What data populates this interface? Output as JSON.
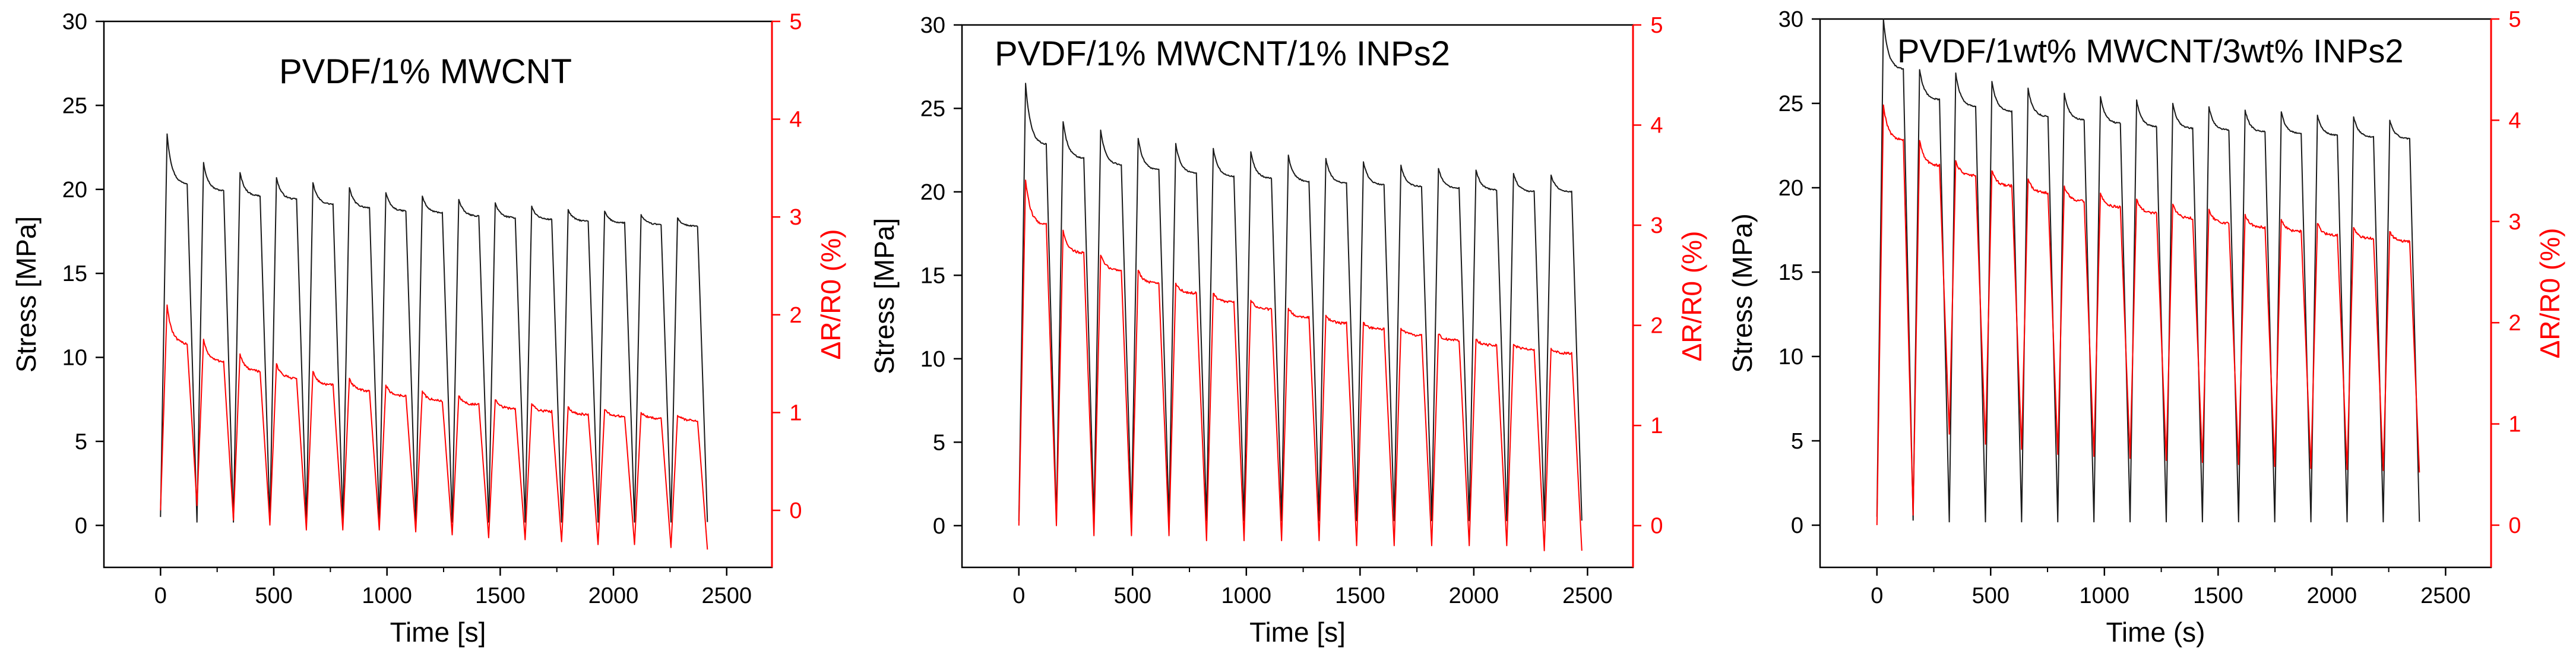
{
  "colors": {
    "stress": "#1a1a1a",
    "resistance": "#ff0000",
    "axis": "#000000"
  },
  "chart_data": [
    {
      "type": "line",
      "title": "PVDF/1% MWCNT",
      "xlabel": "Time [s]",
      "ylabel": "Stress [MPa]",
      "y2label": "ΔR/R0 (%)",
      "xlim": [
        -250,
        2700
      ],
      "ylim": [
        -2.5,
        30
      ],
      "y2lim": [
        -0.583,
        5
      ],
      "xticks": [
        0,
        500,
        1000,
        1500,
        2000,
        2500
      ],
      "yticks": [
        0,
        5,
        10,
        15,
        20,
        25,
        30
      ],
      "y2ticks": [
        0,
        1,
        2,
        3,
        4,
        5
      ],
      "cycle_count": 15,
      "cycle_period_s": 161,
      "series": [
        {
          "name": "Stress",
          "axis": "left",
          "start": 0.5,
          "peaks": [
            23.3,
            21.6,
            21.0,
            20.7,
            20.4,
            20.1,
            19.8,
            19.6,
            19.4,
            19.2,
            19.0,
            18.8,
            18.7,
            18.5,
            18.3
          ],
          "ends": [
            20.3,
            19.9,
            19.6,
            19.4,
            19.1,
            18.9,
            18.7,
            18.6,
            18.4,
            18.3,
            18.2,
            18.1,
            18.0,
            17.9,
            17.8
          ],
          "valleys": [
            0.2,
            0.2,
            0.2,
            0.2,
            0.2,
            0.2,
            0.2,
            0.2,
            0.2,
            0.2,
            0.2,
            0.2,
            0.2,
            0.2,
            0.2
          ]
        },
        {
          "name": "ΔR/R0",
          "axis": "right",
          "start": 0.0,
          "peaks": [
            2.1,
            1.75,
            1.6,
            1.5,
            1.42,
            1.35,
            1.28,
            1.22,
            1.17,
            1.13,
            1.09,
            1.06,
            1.03,
            1.0,
            0.97
          ],
          "ends": [
            1.7,
            1.52,
            1.42,
            1.35,
            1.28,
            1.22,
            1.17,
            1.12,
            1.08,
            1.04,
            1.01,
            0.98,
            0.96,
            0.94,
            0.92
          ],
          "valleys": [
            0.05,
            -0.1,
            -0.15,
            -0.2,
            -0.2,
            -0.2,
            -0.22,
            -0.25,
            -0.28,
            -0.3,
            -0.32,
            -0.35,
            -0.35,
            -0.38,
            -0.4
          ]
        }
      ]
    },
    {
      "type": "line",
      "title": "PVDF/1% MWCNT/1% INPs2",
      "xlabel": "Time [s]",
      "ylabel": "Stress [MPa]",
      "y2label": "ΔR/R0 (%)",
      "xlim": [
        -250,
        2700
      ],
      "ylim": [
        -2.5,
        30
      ],
      "y2lim": [
        -0.417,
        5
      ],
      "xticks": [
        0,
        500,
        1000,
        1500,
        2000,
        2500
      ],
      "yticks": [
        0,
        5,
        10,
        15,
        20,
        25,
        30
      ],
      "y2ticks": [
        0,
        1,
        2,
        3,
        4,
        5
      ],
      "cycle_count": 15,
      "cycle_period_s": 165,
      "series": [
        {
          "name": "Stress",
          "axis": "left",
          "start": 0.3,
          "peaks": [
            26.5,
            24.2,
            23.7,
            23.2,
            22.9,
            22.6,
            22.4,
            22.2,
            22.0,
            21.8,
            21.6,
            21.4,
            21.3,
            21.1,
            21.0
          ],
          "ends": [
            22.8,
            22.0,
            21.6,
            21.3,
            21.1,
            20.9,
            20.8,
            20.6,
            20.5,
            20.4,
            20.3,
            20.2,
            20.1,
            20.0,
            20.0
          ],
          "valleys": [
            0.3,
            0.3,
            0.3,
            0.3,
            0.3,
            0.3,
            0.3,
            0.3,
            0.3,
            0.3,
            0.3,
            0.3,
            0.3,
            0.3,
            0.3
          ]
        },
        {
          "name": "ΔR/R0",
          "axis": "right",
          "start": 0.0,
          "peaks": [
            3.45,
            2.95,
            2.7,
            2.55,
            2.42,
            2.32,
            2.25,
            2.17,
            2.1,
            2.03,
            1.97,
            1.91,
            1.86,
            1.81,
            1.77
          ],
          "ends": [
            3.0,
            2.72,
            2.55,
            2.42,
            2.32,
            2.23,
            2.16,
            2.08,
            2.02,
            1.96,
            1.9,
            1.85,
            1.8,
            1.76,
            1.72
          ],
          "valleys": [
            0.0,
            -0.1,
            -0.1,
            -0.1,
            -0.15,
            -0.15,
            -0.15,
            -0.15,
            -0.2,
            -0.2,
            -0.2,
            -0.2,
            -0.2,
            -0.25,
            -0.25
          ]
        }
      ]
    },
    {
      "type": "line",
      "title": "PVDF/1wt% MWCNT/3wt% INPs2",
      "xlabel": "Time (s)",
      "ylabel": "Stress (MPa)",
      "y2label": "ΔR/R0 (%)",
      "xlim": [
        -250,
        2700
      ],
      "ylim": [
        -2.5,
        30
      ],
      "y2lim": [
        -0.417,
        5
      ],
      "xticks": [
        0,
        500,
        1000,
        1500,
        2000,
        2500
      ],
      "yticks": [
        0,
        5,
        10,
        15,
        20,
        25,
        30
      ],
      "y2ticks": [
        0,
        1,
        2,
        3,
        4,
        5
      ],
      "cycle_count": 15,
      "cycle_period_s": 159,
      "series": [
        {
          "name": "Stress",
          "axis": "left",
          "start": 0.5,
          "peaks": [
            30.0,
            27.0,
            26.8,
            26.3,
            25.9,
            25.6,
            25.4,
            25.2,
            25.0,
            24.8,
            24.6,
            24.5,
            24.3,
            24.2,
            24.0
          ],
          "ends": [
            27.0,
            25.2,
            24.8,
            24.5,
            24.2,
            24.0,
            23.8,
            23.6,
            23.5,
            23.4,
            23.3,
            23.2,
            23.1,
            23.0,
            22.9
          ],
          "valleys": [
            0.3,
            0.2,
            0.2,
            0.2,
            0.2,
            0.2,
            0.2,
            0.2,
            0.2,
            0.2,
            0.2,
            0.2,
            0.2,
            0.2,
            0.2
          ]
        },
        {
          "name": "ΔR/R0",
          "axis": "right",
          "start": 0.0,
          "peaks": [
            4.15,
            3.8,
            3.6,
            3.5,
            3.42,
            3.35,
            3.28,
            3.22,
            3.17,
            3.12,
            3.07,
            3.02,
            2.98,
            2.94,
            2.9
          ],
          "ends": [
            3.8,
            3.55,
            3.45,
            3.35,
            3.28,
            3.2,
            3.14,
            3.08,
            3.03,
            2.98,
            2.94,
            2.9,
            2.86,
            2.83,
            2.8
          ],
          "valleys": [
            0.1,
            0.9,
            0.8,
            0.75,
            0.7,
            0.68,
            0.66,
            0.64,
            0.62,
            0.6,
            0.58,
            0.56,
            0.55,
            0.54,
            0.52
          ]
        }
      ]
    }
  ]
}
